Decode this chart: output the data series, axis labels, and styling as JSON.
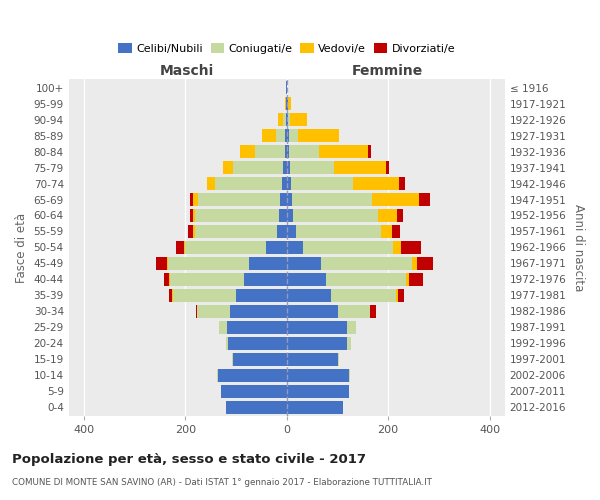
{
  "age_groups": [
    "0-4",
    "5-9",
    "10-14",
    "15-19",
    "20-24",
    "25-29",
    "30-34",
    "35-39",
    "40-44",
    "45-49",
    "50-54",
    "55-59",
    "60-64",
    "65-69",
    "70-74",
    "75-79",
    "80-84",
    "85-89",
    "90-94",
    "95-99",
    "100+"
  ],
  "birth_years": [
    "2012-2016",
    "2007-2011",
    "2002-2006",
    "1997-2001",
    "1992-1996",
    "1987-1991",
    "1982-1986",
    "1977-1981",
    "1972-1976",
    "1967-1971",
    "1962-1966",
    "1957-1961",
    "1952-1956",
    "1947-1951",
    "1942-1946",
    "1937-1941",
    "1932-1936",
    "1927-1931",
    "1922-1926",
    "1917-1921",
    "≤ 1916"
  ],
  "colors": {
    "celibi": "#4472c4",
    "coniugati": "#c5d9a0",
    "vedovi": "#ffc000",
    "divorziati": "#c00000",
    "plot_bg": "#ebebeb"
  },
  "title": "Popolazione per età, sesso e stato civile - 2017",
  "subtitle": "COMUNE DI MONTE SAN SAVINO (AR) - Dati ISTAT 1° gennaio 2017 - Elaborazione TUTTITALIA.IT",
  "ylabel_left": "Fasce di età",
  "ylabel_right": "Anni di nascita",
  "label_maschi": "Maschi",
  "label_femmine": "Femmine",
  "legend_labels": [
    "Celibi/Nubili",
    "Coniugati/e",
    "Vedovi/e",
    "Divorziati/e"
  ],
  "xlim": 430,
  "maschi": {
    "celibi": [
      120,
      130,
      135,
      105,
      115,
      118,
      112,
      100,
      85,
      75,
      40,
      20,
      15,
      13,
      10,
      7,
      4,
      3,
      2,
      1,
      1
    ],
    "coniugati": [
      0,
      0,
      2,
      3,
      5,
      16,
      65,
      125,
      145,
      160,
      160,
      160,
      165,
      162,
      132,
      98,
      58,
      18,
      5,
      0,
      0
    ],
    "vedovi": [
      0,
      0,
      0,
      0,
      0,
      0,
      0,
      2,
      2,
      2,
      3,
      5,
      5,
      10,
      15,
      20,
      30,
      28,
      10,
      3,
      0
    ],
    "divorziati": [
      0,
      0,
      0,
      0,
      0,
      0,
      2,
      5,
      10,
      20,
      15,
      10,
      5,
      6,
      0,
      0,
      0,
      0,
      0,
      0,
      0
    ]
  },
  "femmine": {
    "celibi": [
      110,
      122,
      122,
      102,
      118,
      118,
      102,
      88,
      78,
      68,
      32,
      18,
      12,
      10,
      8,
      6,
      5,
      4,
      2,
      2,
      1
    ],
    "coniugati": [
      0,
      0,
      2,
      2,
      8,
      18,
      62,
      128,
      158,
      178,
      178,
      168,
      168,
      158,
      122,
      88,
      58,
      18,
      5,
      0,
      0
    ],
    "vedovi": [
      0,
      0,
      0,
      0,
      0,
      0,
      0,
      3,
      5,
      10,
      16,
      22,
      38,
      92,
      92,
      102,
      98,
      82,
      32,
      6,
      0
    ],
    "divorziati": [
      0,
      0,
      0,
      0,
      0,
      0,
      12,
      12,
      28,
      32,
      38,
      16,
      12,
      22,
      12,
      6,
      6,
      0,
      0,
      0,
      0
    ]
  }
}
